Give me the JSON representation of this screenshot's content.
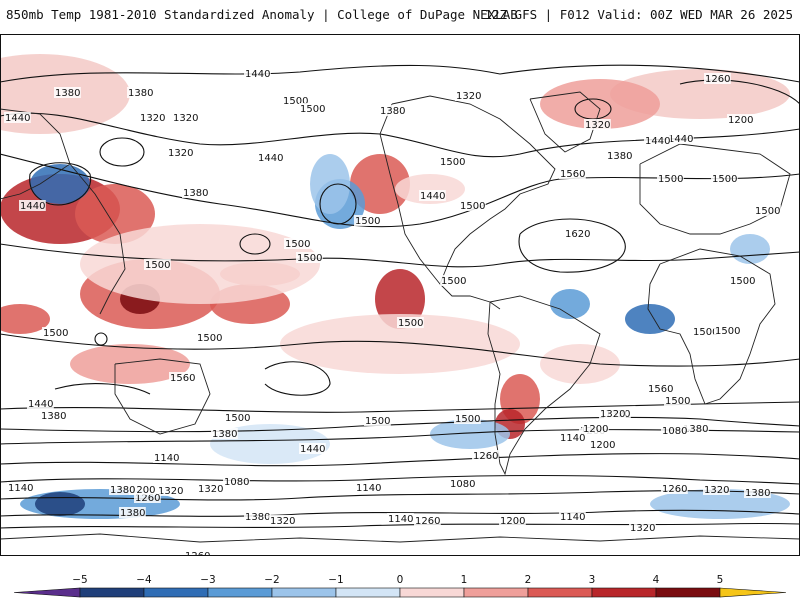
{
  "header": {
    "title": "850mb Temp 1981-2010 Standardized Anomaly | College of DuPage NEXLAB",
    "run": "12Z GFS | F012 Valid: 00Z WED MAR 26 2025"
  },
  "colorbar": {
    "ticks": [
      -5,
      -4,
      -3,
      -2,
      -1,
      0,
      1,
      2,
      3,
      4,
      5
    ],
    "tick_labels": [
      "−5",
      "−4",
      "−3",
      "−2",
      "−1",
      "0",
      "1",
      "2",
      "3",
      "4",
      "5"
    ],
    "colors": [
      "#5a2e8c",
      "#1f3f7a",
      "#2f6db5",
      "#5a9bd6",
      "#9cc4ea",
      "#d3e5f6",
      "#f8d8d6",
      "#ef9f9a",
      "#db5a55",
      "#b8262a",
      "#7a0c10",
      "#f5c518"
    ]
  },
  "contour_labels": [
    {
      "text": "1380"
    },
    {
      "text": "1440"
    },
    {
      "text": "1380"
    },
    {
      "text": "1320"
    },
    {
      "text": "1320"
    },
    {
      "text": "1380"
    },
    {
      "text": "1440"
    },
    {
      "text": "1500"
    },
    {
      "text": "1500"
    },
    {
      "text": "1440"
    },
    {
      "text": "1500"
    },
    {
      "text": "1440"
    },
    {
      "text": "1500"
    },
    {
      "text": "1500"
    },
    {
      "text": "1380"
    },
    {
      "text": "1320"
    },
    {
      "text": "1260"
    },
    {
      "text": "1320"
    },
    {
      "text": "1200"
    },
    {
      "text": "1440"
    },
    {
      "text": "1380"
    },
    {
      "text": "1560"
    },
    {
      "text": "1620"
    },
    {
      "text": "1500"
    },
    {
      "text": "1500"
    },
    {
      "text": "1500"
    },
    {
      "text": "1500"
    },
    {
      "text": "1500"
    },
    {
      "text": "1500"
    },
    {
      "text": "1500"
    },
    {
      "text": "1500"
    },
    {
      "text": "1500"
    },
    {
      "text": "1500"
    },
    {
      "text": "1440"
    },
    {
      "text": "1320"
    },
    {
      "text": "1560"
    },
    {
      "text": "1500"
    },
    {
      "text": "1500"
    },
    {
      "text": "1500"
    },
    {
      "text": "1500"
    },
    {
      "text": "1440"
    },
    {
      "text": "1380"
    },
    {
      "text": "1380"
    },
    {
      "text": "1440"
    },
    {
      "text": "1500"
    },
    {
      "text": "1320"
    },
    {
      "text": "1200"
    },
    {
      "text": "1260"
    },
    {
      "text": "1140"
    },
    {
      "text": "1200"
    },
    {
      "text": "1380"
    },
    {
      "text": "1320"
    },
    {
      "text": "1260"
    },
    {
      "text": "1140"
    },
    {
      "text": "1140"
    },
    {
      "text": "1080"
    },
    {
      "text": "1080"
    },
    {
      "text": "1320"
    },
    {
      "text": "1140"
    },
    {
      "text": "1200"
    },
    {
      "text": "1140"
    },
    {
      "text": "1380"
    },
    {
      "text": "1380"
    },
    {
      "text": "1320"
    },
    {
      "text": "1260"
    },
    {
      "text": "1200"
    },
    {
      "text": "1140"
    },
    {
      "text": "1260"
    },
    {
      "text": "1200"
    },
    {
      "text": "1320"
    },
    {
      "text": "1380"
    },
    {
      "text": "1320"
    },
    {
      "text": "1080"
    },
    {
      "text": "1500"
    },
    {
      "text": "1560"
    },
    {
      "text": "1500"
    },
    {
      "text": "1260"
    },
    {
      "text": "1320"
    },
    {
      "text": "1380"
    },
    {
      "text": "1440"
    }
  ]
}
